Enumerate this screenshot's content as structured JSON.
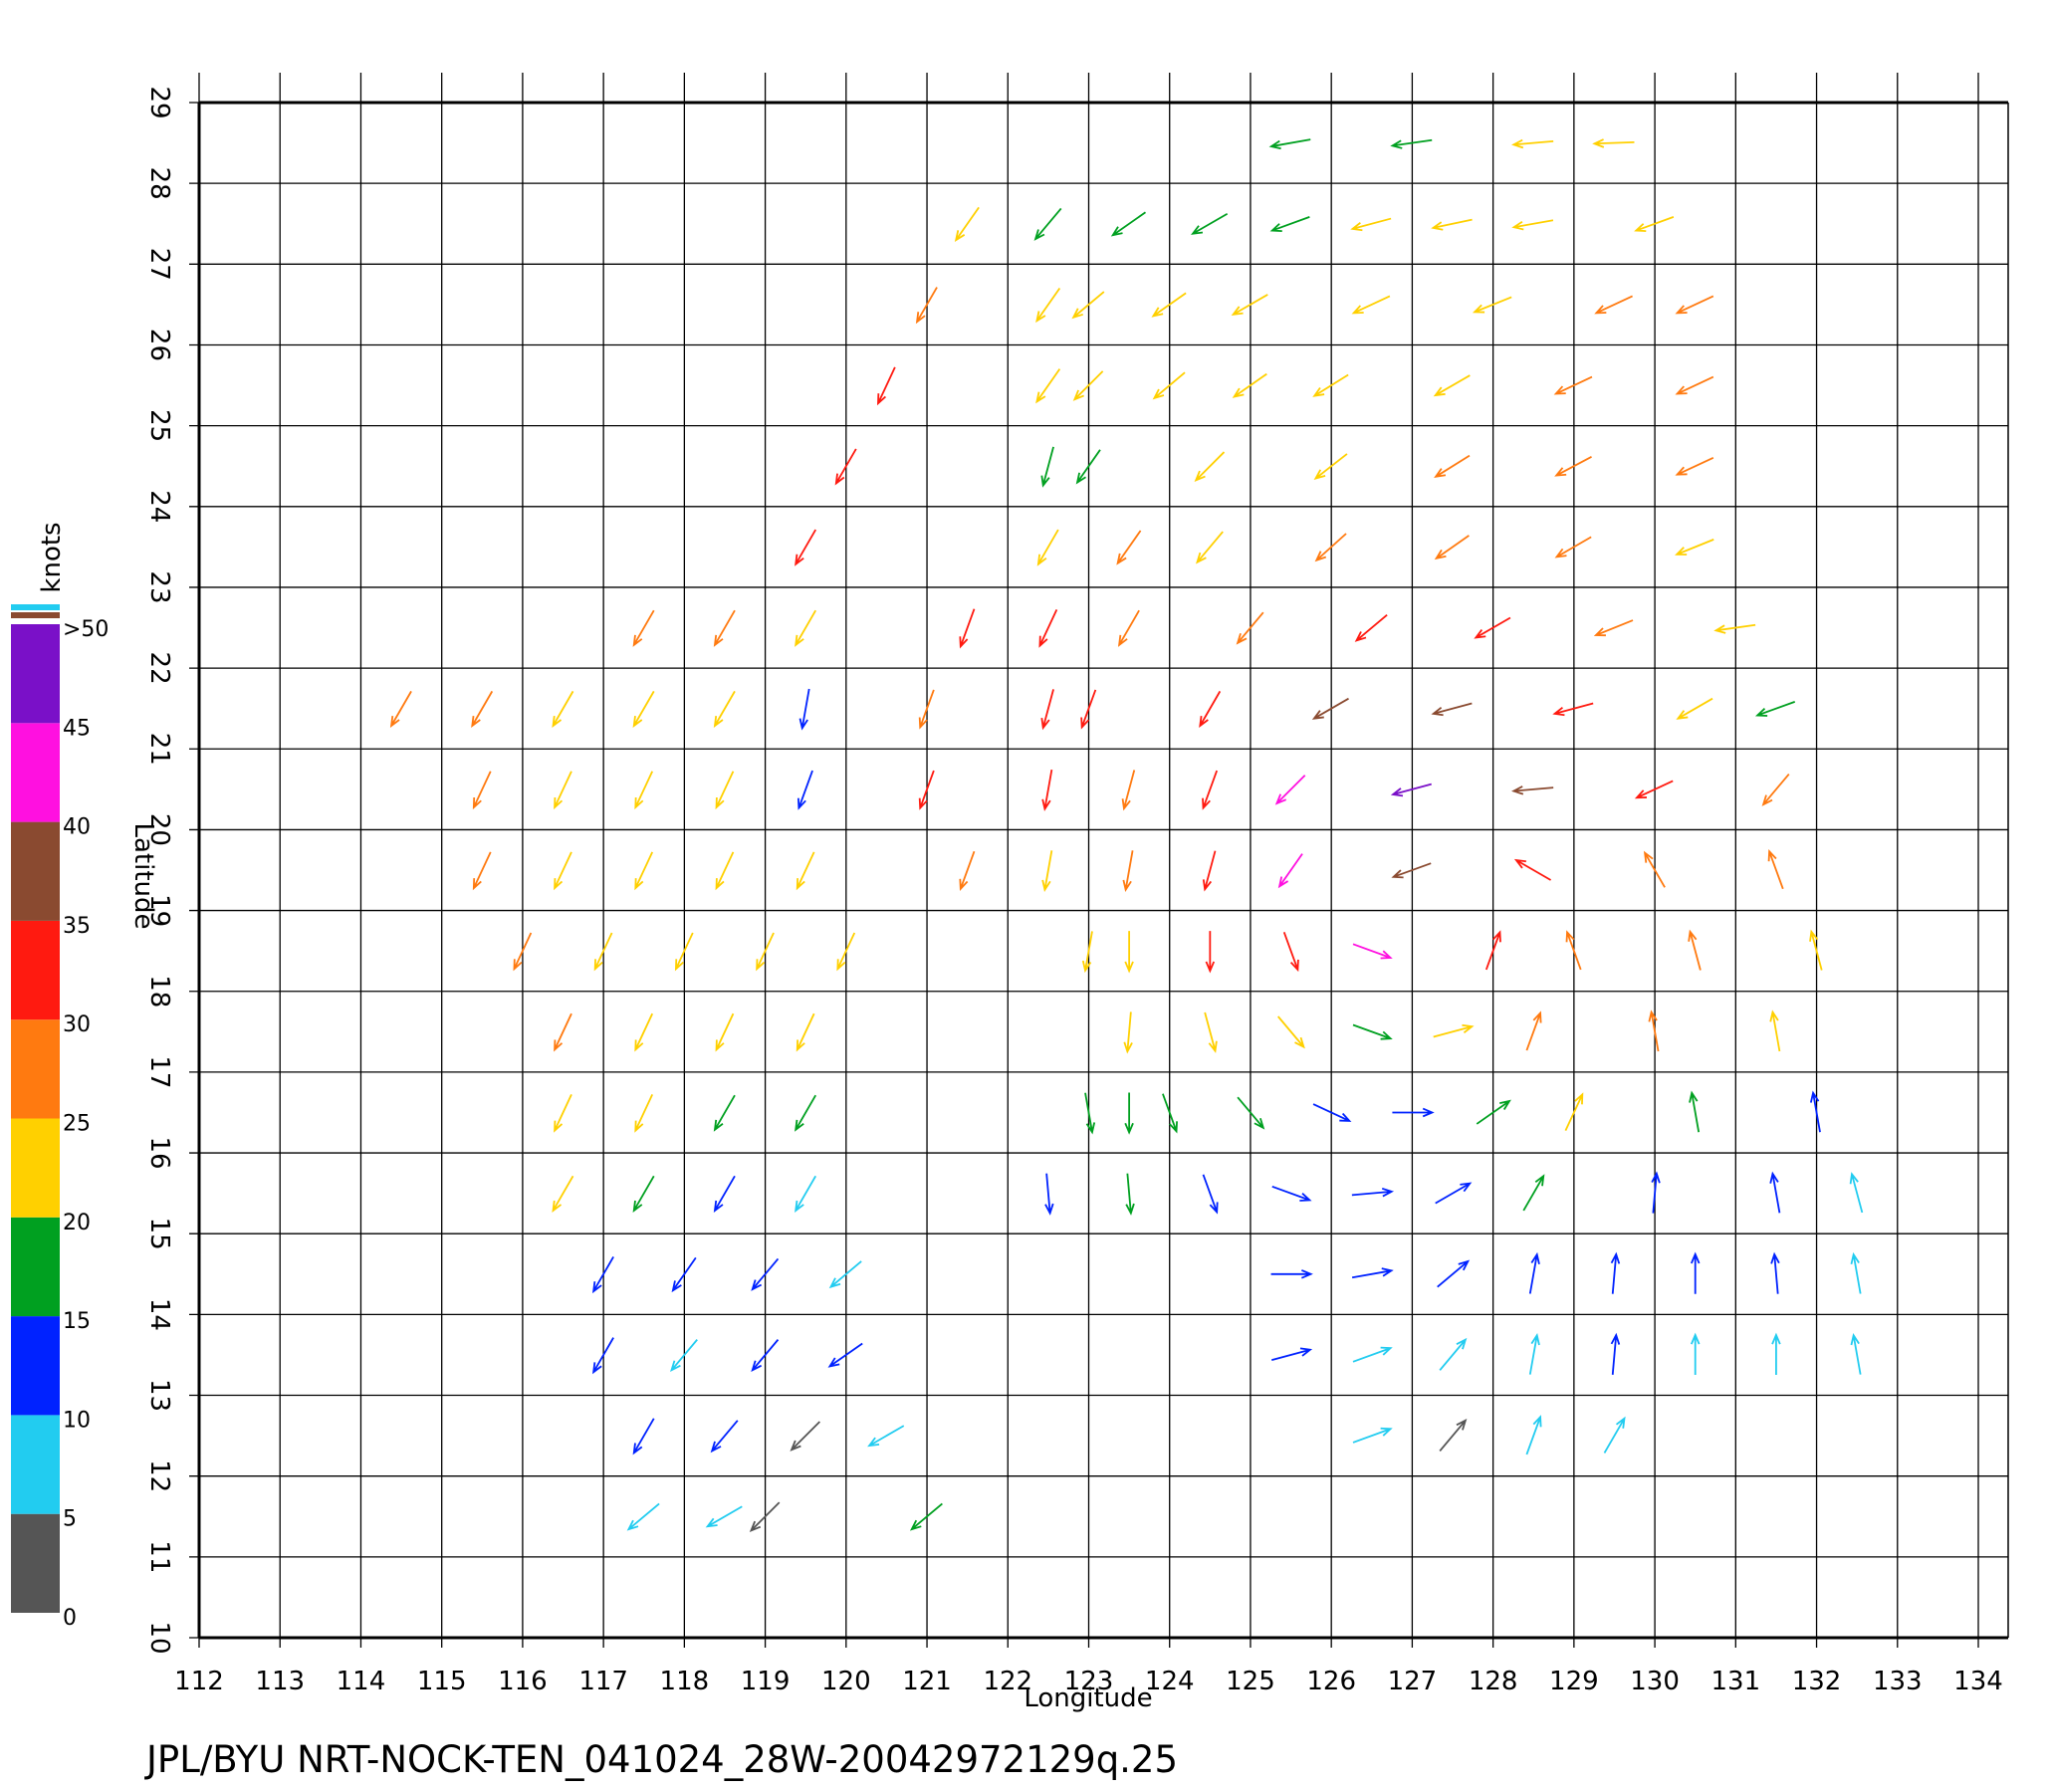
{
  "chart_data": {
    "type": "quiver",
    "footer": "JPL/BYU  NRT-NOCK-TEN_041024_28W-20042972129q.25",
    "xlabel": "Longitude",
    "ylabel": "Latitude",
    "xlim": [
      112,
      134
    ],
    "ylim": [
      10,
      29
    ],
    "xticks": [
      112,
      113,
      114,
      115,
      116,
      117,
      118,
      119,
      120,
      121,
      122,
      123,
      124,
      125,
      126,
      127,
      128,
      129,
      130,
      131,
      132,
      133,
      134
    ],
    "yticks": [
      10,
      11,
      12,
      13,
      14,
      15,
      16,
      17,
      18,
      19,
      20,
      21,
      22,
      23,
      24,
      25,
      26,
      27,
      28,
      29
    ],
    "grid": true,
    "colorbar": {
      "label": "knots",
      "ticks": [
        0,
        5,
        10,
        15,
        20,
        25,
        30,
        35,
        40,
        45,
        {
          "value": 50,
          "label": ">50"
        }
      ],
      "colors": [
        "#555555",
        "#22ccf0",
        "#0022ff",
        "#00a020",
        "#ffd000",
        "#ff7a10",
        "#ff1a10",
        "#8a4a30",
        "#ff10e0",
        "#7a10c8"
      ]
    },
    "vectors": [
      {
        "x": 117.5,
        "y": 22.5,
        "speed": 27,
        "dir": 210
      },
      {
        "x": 118.5,
        "y": 22.5,
        "speed": 26,
        "dir": 210
      },
      {
        "x": 119.5,
        "y": 22.5,
        "speed": 24,
        "dir": 210
      },
      {
        "x": 121.5,
        "y": 22.5,
        "speed": 30,
        "dir": 200
      },
      {
        "x": 114.5,
        "y": 21.5,
        "speed": 28,
        "dir": 210
      },
      {
        "x": 115.5,
        "y": 21.5,
        "speed": 26,
        "dir": 210
      },
      {
        "x": 116.5,
        "y": 21.5,
        "speed": 24,
        "dir": 210
      },
      {
        "x": 117.5,
        "y": 21.5,
        "speed": 23,
        "dir": 210
      },
      {
        "x": 118.5,
        "y": 21.5,
        "speed": 22,
        "dir": 210
      },
      {
        "x": 119.5,
        "y": 21.5,
        "speed": 12,
        "dir": 190
      },
      {
        "x": 121.0,
        "y": 21.5,
        "speed": 28,
        "dir": 200
      },
      {
        "x": 122.5,
        "y": 21.5,
        "speed": 30,
        "dir": 195
      },
      {
        "x": 115.5,
        "y": 20.5,
        "speed": 26,
        "dir": 205
      },
      {
        "x": 116.5,
        "y": 20.5,
        "speed": 23,
        "dir": 205
      },
      {
        "x": 117.5,
        "y": 20.5,
        "speed": 22,
        "dir": 205
      },
      {
        "x": 118.5,
        "y": 20.5,
        "speed": 21,
        "dir": 205
      },
      {
        "x": 119.5,
        "y": 20.5,
        "speed": 14,
        "dir": 200
      },
      {
        "x": 121.0,
        "y": 20.5,
        "speed": 30,
        "dir": 200
      },
      {
        "x": 122.5,
        "y": 20.5,
        "speed": 32,
        "dir": 190
      },
      {
        "x": 115.5,
        "y": 19.5,
        "speed": 27,
        "dir": 205
      },
      {
        "x": 116.5,
        "y": 19.5,
        "speed": 24,
        "dir": 205
      },
      {
        "x": 117.5,
        "y": 19.5,
        "speed": 22,
        "dir": 205
      },
      {
        "x": 118.5,
        "y": 19.5,
        "speed": 21,
        "dir": 205
      },
      {
        "x": 119.5,
        "y": 19.5,
        "speed": 20,
        "dir": 205
      },
      {
        "x": 121.5,
        "y": 19.5,
        "speed": 28,
        "dir": 200
      },
      {
        "x": 122.5,
        "y": 19.5,
        "speed": 24,
        "dir": 190
      },
      {
        "x": 116.0,
        "y": 18.5,
        "speed": 28,
        "dir": 205
      },
      {
        "x": 117.0,
        "y": 18.5,
        "speed": 24,
        "dir": 205
      },
      {
        "x": 118.0,
        "y": 18.5,
        "speed": 22,
        "dir": 205
      },
      {
        "x": 119.0,
        "y": 18.5,
        "speed": 21,
        "dir": 205
      },
      {
        "x": 120.0,
        "y": 18.5,
        "speed": 22,
        "dir": 205
      },
      {
        "x": 123.0,
        "y": 18.5,
        "speed": 22,
        "dir": 190
      },
      {
        "x": 116.5,
        "y": 17.5,
        "speed": 26,
        "dir": 205
      },
      {
        "x": 117.5,
        "y": 17.5,
        "speed": 23,
        "dir": 205
      },
      {
        "x": 118.5,
        "y": 17.5,
        "speed": 21,
        "dir": 205
      },
      {
        "x": 119.5,
        "y": 17.5,
        "speed": 20,
        "dir": 205
      },
      {
        "x": 123.5,
        "y": 17.5,
        "speed": 23,
        "dir": 185
      },
      {
        "x": 116.5,
        "y": 16.5,
        "speed": 24,
        "dir": 205
      },
      {
        "x": 117.5,
        "y": 16.5,
        "speed": 21,
        "dir": 205
      },
      {
        "x": 118.5,
        "y": 16.5,
        "speed": 18,
        "dir": 210
      },
      {
        "x": 119.5,
        "y": 16.5,
        "speed": 17,
        "dir": 210
      },
      {
        "x": 123.5,
        "y": 16.5,
        "speed": 17,
        "dir": 180
      },
      {
        "x": 116.5,
        "y": 15.5,
        "speed": 20,
        "dir": 210
      },
      {
        "x": 117.5,
        "y": 15.5,
        "speed": 17,
        "dir": 210
      },
      {
        "x": 118.5,
        "y": 15.5,
        "speed": 13,
        "dir": 210
      },
      {
        "x": 119.5,
        "y": 15.5,
        "speed": 8,
        "dir": 210
      },
      {
        "x": 122.5,
        "y": 15.5,
        "speed": 12,
        "dir": 175
      },
      {
        "x": 123.5,
        "y": 15.5,
        "speed": 18,
        "dir": 175
      },
      {
        "x": 124.5,
        "y": 15.5,
        "speed": 12,
        "dir": 160
      },
      {
        "x": 117.0,
        "y": 14.5,
        "speed": 14,
        "dir": 210
      },
      {
        "x": 118.0,
        "y": 14.5,
        "speed": 12,
        "dir": 215
      },
      {
        "x": 119.0,
        "y": 14.5,
        "speed": 10,
        "dir": 220
      },
      {
        "x": 120.0,
        "y": 14.5,
        "speed": 8,
        "dir": 230
      },
      {
        "x": 117.0,
        "y": 13.5,
        "speed": 12,
        "dir": 210
      },
      {
        "x": 118.0,
        "y": 13.5,
        "speed": 8,
        "dir": 220
      },
      {
        "x": 119.0,
        "y": 13.5,
        "speed": 11,
        "dir": 220
      },
      {
        "x": 120.0,
        "y": 13.5,
        "speed": 12,
        "dir": 235
      },
      {
        "x": 117.5,
        "y": 12.5,
        "speed": 12,
        "dir": 210
      },
      {
        "x": 118.5,
        "y": 12.5,
        "speed": 10,
        "dir": 220
      },
      {
        "x": 119.5,
        "y": 12.5,
        "speed": 4,
        "dir": 225
      },
      {
        "x": 120.5,
        "y": 12.5,
        "speed": 8,
        "dir": 240
      },
      {
        "x": 117.5,
        "y": 11.5,
        "speed": 7,
        "dir": 230
      },
      {
        "x": 118.5,
        "y": 11.5,
        "speed": 7,
        "dir": 240
      },
      {
        "x": 119.0,
        "y": 11.5,
        "speed": 3,
        "dir": 225
      },
      {
        "x": 121.0,
        "y": 11.5,
        "speed": 15,
        "dir": 230
      },
      {
        "x": 119.5,
        "y": 23.5,
        "speed": 30,
        "dir": 210
      },
      {
        "x": 120.0,
        "y": 24.5,
        "speed": 30,
        "dir": 210
      },
      {
        "x": 122.5,
        "y": 24.5,
        "speed": 19,
        "dir": 195
      },
      {
        "x": 120.5,
        "y": 25.5,
        "speed": 30,
        "dir": 205
      },
      {
        "x": 122.5,
        "y": 25.5,
        "speed": 22,
        "dir": 215
      },
      {
        "x": 121.0,
        "y": 26.5,
        "speed": 28,
        "dir": 210
      },
      {
        "x": 122.5,
        "y": 26.5,
        "speed": 20,
        "dir": 215
      },
      {
        "x": 121.5,
        "y": 27.5,
        "speed": 22,
        "dir": 215
      },
      {
        "x": 122.5,
        "y": 27.5,
        "speed": 16,
        "dir": 220
      },
      {
        "x": 125.5,
        "y": 28.5,
        "speed": 17,
        "dir": 260
      },
      {
        "x": 127.0,
        "y": 28.5,
        "speed": 18,
        "dir": 262
      },
      {
        "x": 128.5,
        "y": 28.5,
        "speed": 20,
        "dir": 265
      },
      {
        "x": 129.5,
        "y": 28.5,
        "speed": 21,
        "dir": 268
      },
      {
        "x": 123.5,
        "y": 27.5,
        "speed": 18,
        "dir": 235
      },
      {
        "x": 124.5,
        "y": 27.5,
        "speed": 17,
        "dir": 240
      },
      {
        "x": 125.5,
        "y": 27.5,
        "speed": 16,
        "dir": 250
      },
      {
        "x": 126.5,
        "y": 27.5,
        "speed": 21,
        "dir": 255
      },
      {
        "x": 127.5,
        "y": 27.5,
        "speed": 21,
        "dir": 258
      },
      {
        "x": 128.5,
        "y": 27.5,
        "speed": 22,
        "dir": 260
      },
      {
        "x": 130.0,
        "y": 27.5,
        "speed": 24,
        "dir": 250
      },
      {
        "x": 123.0,
        "y": 26.5,
        "speed": 22,
        "dir": 230
      },
      {
        "x": 124.0,
        "y": 26.5,
        "speed": 21,
        "dir": 235
      },
      {
        "x": 125.0,
        "y": 26.5,
        "speed": 22,
        "dir": 240
      },
      {
        "x": 126.5,
        "y": 26.5,
        "speed": 22,
        "dir": 245
      },
      {
        "x": 128.0,
        "y": 26.5,
        "speed": 23,
        "dir": 248
      },
      {
        "x": 129.5,
        "y": 26.5,
        "speed": 25,
        "dir": 245
      },
      {
        "x": 130.5,
        "y": 26.5,
        "speed": 25,
        "dir": 245
      },
      {
        "x": 123.0,
        "y": 25.5,
        "speed": 20,
        "dir": 225
      },
      {
        "x": 124.0,
        "y": 25.5,
        "speed": 22,
        "dir": 230
      },
      {
        "x": 125.0,
        "y": 25.5,
        "speed": 23,
        "dir": 235
      },
      {
        "x": 126.0,
        "y": 25.5,
        "speed": 24,
        "dir": 238
      },
      {
        "x": 127.5,
        "y": 25.5,
        "speed": 23,
        "dir": 240
      },
      {
        "x": 129.0,
        "y": 25.5,
        "speed": 25,
        "dir": 245
      },
      {
        "x": 130.5,
        "y": 25.5,
        "speed": 26,
        "dir": 245
      },
      {
        "x": 123.0,
        "y": 24.5,
        "speed": 17,
        "dir": 215
      },
      {
        "x": 124.5,
        "y": 24.5,
        "speed": 23,
        "dir": 225
      },
      {
        "x": 126.0,
        "y": 24.5,
        "speed": 24,
        "dir": 232
      },
      {
        "x": 127.5,
        "y": 24.5,
        "speed": 25,
        "dir": 238
      },
      {
        "x": 129.0,
        "y": 24.5,
        "speed": 26,
        "dir": 242
      },
      {
        "x": 130.5,
        "y": 24.5,
        "speed": 26,
        "dir": 245
      },
      {
        "x": 122.5,
        "y": 23.5,
        "speed": 22,
        "dir": 210
      },
      {
        "x": 123.5,
        "y": 23.5,
        "speed": 25,
        "dir": 215
      },
      {
        "x": 124.5,
        "y": 23.5,
        "speed": 24,
        "dir": 220
      },
      {
        "x": 126.0,
        "y": 23.5,
        "speed": 25,
        "dir": 228
      },
      {
        "x": 127.5,
        "y": 23.5,
        "speed": 27,
        "dir": 235
      },
      {
        "x": 129.0,
        "y": 23.5,
        "speed": 26,
        "dir": 240
      },
      {
        "x": 130.5,
        "y": 23.5,
        "speed": 24,
        "dir": 248
      },
      {
        "x": 122.5,
        "y": 22.5,
        "speed": 30,
        "dir": 205
      },
      {
        "x": 123.5,
        "y": 22.5,
        "speed": 28,
        "dir": 210
      },
      {
        "x": 125.0,
        "y": 22.5,
        "speed": 28,
        "dir": 220
      },
      {
        "x": 126.5,
        "y": 22.5,
        "speed": 30,
        "dir": 230
      },
      {
        "x": 128.0,
        "y": 22.5,
        "speed": 30,
        "dir": 240
      },
      {
        "x": 129.5,
        "y": 22.5,
        "speed": 26,
        "dir": 248
      },
      {
        "x": 131.0,
        "y": 22.5,
        "speed": 20,
        "dir": 262
      },
      {
        "x": 123.0,
        "y": 21.5,
        "speed": 30,
        "dir": 200
      },
      {
        "x": 124.5,
        "y": 21.5,
        "speed": 30,
        "dir": 210
      },
      {
        "x": 126.0,
        "y": 21.5,
        "speed": 37,
        "dir": 240
      },
      {
        "x": 127.5,
        "y": 21.5,
        "speed": 37,
        "dir": 255
      },
      {
        "x": 129.0,
        "y": 21.5,
        "speed": 31,
        "dir": 255
      },
      {
        "x": 130.5,
        "y": 21.5,
        "speed": 24,
        "dir": 240
      },
      {
        "x": 131.5,
        "y": 21.5,
        "speed": 18,
        "dir": 250
      },
      {
        "x": 123.5,
        "y": 20.5,
        "speed": 28,
        "dir": 195
      },
      {
        "x": 124.5,
        "y": 20.5,
        "speed": 33,
        "dir": 200
      },
      {
        "x": 125.5,
        "y": 20.5,
        "speed": 43,
        "dir": 225
      },
      {
        "x": 127.0,
        "y": 20.5,
        "speed": 47,
        "dir": 255
      },
      {
        "x": 128.5,
        "y": 20.5,
        "speed": 37,
        "dir": 265
      },
      {
        "x": 130.0,
        "y": 20.5,
        "speed": 30,
        "dir": 245
      },
      {
        "x": 131.5,
        "y": 20.5,
        "speed": 27,
        "dir": 220
      },
      {
        "x": 123.5,
        "y": 19.5,
        "speed": 25,
        "dir": 190
      },
      {
        "x": 124.5,
        "y": 19.5,
        "speed": 32,
        "dir": 195
      },
      {
        "x": 125.5,
        "y": 19.5,
        "speed": 43,
        "dir": 215
      },
      {
        "x": 127.0,
        "y": 19.5,
        "speed": 38,
        "dir": 250
      },
      {
        "x": 128.5,
        "y": 19.5,
        "speed": 33,
        "dir": 300
      },
      {
        "x": 130.0,
        "y": 19.5,
        "speed": 28,
        "dir": 330
      },
      {
        "x": 131.5,
        "y": 19.5,
        "speed": 25,
        "dir": 340
      },
      {
        "x": 123.5,
        "y": 18.5,
        "speed": 23,
        "dir": 180
      },
      {
        "x": 124.5,
        "y": 18.5,
        "speed": 30,
        "dir": 180
      },
      {
        "x": 125.5,
        "y": 18.5,
        "speed": 33,
        "dir": 160
      },
      {
        "x": 126.5,
        "y": 18.5,
        "speed": 40,
        "dir": 110
      },
      {
        "x": 128.0,
        "y": 18.5,
        "speed": 30,
        "dir": 20
      },
      {
        "x": 129.0,
        "y": 18.5,
        "speed": 29,
        "dir": 340
      },
      {
        "x": 130.5,
        "y": 18.5,
        "speed": 25,
        "dir": 345
      },
      {
        "x": 132.0,
        "y": 18.5,
        "speed": 22,
        "dir": 345
      },
      {
        "x": 124.5,
        "y": 17.5,
        "speed": 24,
        "dir": 165
      },
      {
        "x": 125.5,
        "y": 17.5,
        "speed": 22,
        "dir": 140
      },
      {
        "x": 126.5,
        "y": 17.5,
        "speed": 18,
        "dir": 110
      },
      {
        "x": 127.5,
        "y": 17.5,
        "speed": 20,
        "dir": 75
      },
      {
        "x": 128.5,
        "y": 17.5,
        "speed": 25,
        "dir": 20
      },
      {
        "x": 130.0,
        "y": 17.5,
        "speed": 25,
        "dir": 350
      },
      {
        "x": 131.5,
        "y": 17.5,
        "speed": 22,
        "dir": 350
      },
      {
        "x": 123.0,
        "y": 16.5,
        "speed": 17,
        "dir": 170
      },
      {
        "x": 124.0,
        "y": 16.5,
        "speed": 19,
        "dir": 160
      },
      {
        "x": 125.0,
        "y": 16.5,
        "speed": 17,
        "dir": 140
      },
      {
        "x": 126.0,
        "y": 16.5,
        "speed": 14,
        "dir": 115
      },
      {
        "x": 127.0,
        "y": 16.5,
        "speed": 14,
        "dir": 90
      },
      {
        "x": 128.0,
        "y": 16.5,
        "speed": 18,
        "dir": 55
      },
      {
        "x": 129.0,
        "y": 16.5,
        "speed": 21,
        "dir": 25
      },
      {
        "x": 130.5,
        "y": 16.5,
        "speed": 17,
        "dir": 350
      },
      {
        "x": 132.0,
        "y": 16.5,
        "speed": 13,
        "dir": 350
      },
      {
        "x": 125.5,
        "y": 15.5,
        "speed": 12,
        "dir": 110
      },
      {
        "x": 126.5,
        "y": 15.5,
        "speed": 13,
        "dir": 85
      },
      {
        "x": 127.5,
        "y": 15.5,
        "speed": 14,
        "dir": 60
      },
      {
        "x": 128.5,
        "y": 15.5,
        "speed": 16,
        "dir": 30
      },
      {
        "x": 130.0,
        "y": 15.5,
        "speed": 14,
        "dir": 5
      },
      {
        "x": 131.5,
        "y": 15.5,
        "speed": 12,
        "dir": 350
      },
      {
        "x": 132.5,
        "y": 15.5,
        "speed": 9,
        "dir": 345
      },
      {
        "x": 125.5,
        "y": 14.5,
        "speed": 12,
        "dir": 90
      },
      {
        "x": 126.5,
        "y": 14.5,
        "speed": 12,
        "dir": 80
      },
      {
        "x": 127.5,
        "y": 14.5,
        "speed": 11,
        "dir": 50
      },
      {
        "x": 128.5,
        "y": 14.5,
        "speed": 11,
        "dir": 10
      },
      {
        "x": 129.5,
        "y": 14.5,
        "speed": 10,
        "dir": 5
      },
      {
        "x": 130.5,
        "y": 14.5,
        "speed": 11,
        "dir": 0
      },
      {
        "x": 131.5,
        "y": 14.5,
        "speed": 11,
        "dir": 355
      },
      {
        "x": 132.5,
        "y": 14.5,
        "speed": 8,
        "dir": 350
      },
      {
        "x": 125.5,
        "y": 13.5,
        "speed": 11,
        "dir": 75
      },
      {
        "x": 126.5,
        "y": 13.5,
        "speed": 9,
        "dir": 70
      },
      {
        "x": 127.5,
        "y": 13.5,
        "speed": 8,
        "dir": 40
      },
      {
        "x": 128.5,
        "y": 13.5,
        "speed": 9,
        "dir": 10
      },
      {
        "x": 129.5,
        "y": 13.5,
        "speed": 10,
        "dir": 5
      },
      {
        "x": 130.5,
        "y": 13.5,
        "speed": 9,
        "dir": 0
      },
      {
        "x": 131.5,
        "y": 13.5,
        "speed": 8,
        "dir": 0
      },
      {
        "x": 132.5,
        "y": 13.5,
        "speed": 7,
        "dir": 350
      },
      {
        "x": 126.5,
        "y": 12.5,
        "speed": 7,
        "dir": 70
      },
      {
        "x": 127.5,
        "y": 12.5,
        "speed": 4,
        "dir": 40
      },
      {
        "x": 128.5,
        "y": 12.5,
        "speed": 8,
        "dir": 20
      },
      {
        "x": 129.5,
        "y": 12.5,
        "speed": 7,
        "dir": 30
      }
    ]
  }
}
